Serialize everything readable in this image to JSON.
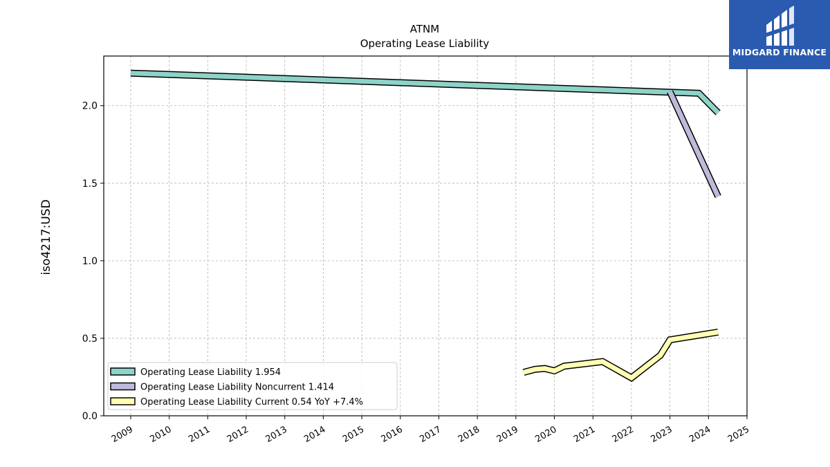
{
  "chart_data": {
    "type": "line",
    "title": "ATNM",
    "subtitle": "Operating Lease Liability",
    "ylabel": "iso4217:USD",
    "xlim": [
      2008.3,
      2025.0
    ],
    "ylim": [
      0.0,
      2.32
    ],
    "x_ticks": [
      "2009",
      "2010",
      "2011",
      "2012",
      "2013",
      "2014",
      "2015",
      "2016",
      "2017",
      "2018",
      "2019",
      "2020",
      "2021",
      "2022",
      "2023",
      "2024",
      "2025"
    ],
    "y_ticks": [
      "0.0",
      "0.5",
      "1.0",
      "1.5",
      "2.0"
    ],
    "grid": true,
    "legend_position": "lower-left",
    "series": [
      {
        "name": "Operating Lease Liability",
        "legend_label": "Operating Lease Liability  1.954",
        "color": "#8dd3c7",
        "points": [
          [
            2009.0,
            2.21
          ],
          [
            2023.75,
            2.08
          ],
          [
            2024.25,
            1.954
          ]
        ]
      },
      {
        "name": "Operating Lease Liability Noncurrent",
        "legend_label": "Operating Lease Liability Noncurrent  1.414",
        "color": "#bebada",
        "points": [
          [
            2023.0,
            2.09
          ],
          [
            2024.25,
            1.414
          ]
        ]
      },
      {
        "name": "Operating Lease Liability Current",
        "legend_label": "Operating Lease Liability Current  0.54 YoY +7.4%",
        "color": "#ffffb3",
        "points": [
          [
            2019.2,
            0.28
          ],
          [
            2019.5,
            0.3
          ],
          [
            2019.75,
            0.305
          ],
          [
            2020.0,
            0.29
          ],
          [
            2020.25,
            0.32
          ],
          [
            2021.25,
            0.35
          ],
          [
            2022.0,
            0.245
          ],
          [
            2022.75,
            0.39
          ],
          [
            2023.0,
            0.49
          ],
          [
            2024.25,
            0.54
          ]
        ]
      }
    ]
  },
  "logo": {
    "text": "MIDGARD FINANCE",
    "icon": "midgard-finance-logo-icon",
    "background": "#2b5bb0"
  }
}
